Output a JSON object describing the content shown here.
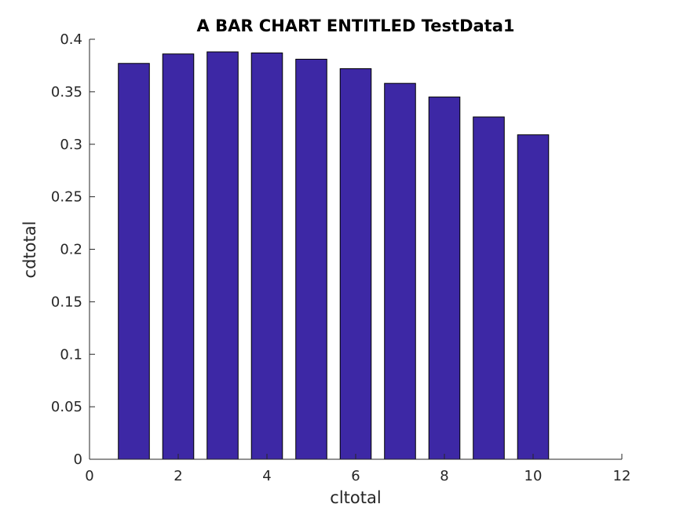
{
  "chart_data": {
    "type": "bar",
    "title": "A BAR CHART ENTITLED TestData1",
    "xlabel": "cltotal",
    "ylabel": "cdtotal",
    "x": [
      1,
      2,
      3,
      4,
      5,
      6,
      7,
      8,
      9,
      10
    ],
    "values": [
      0.377,
      0.386,
      0.388,
      0.387,
      0.381,
      0.372,
      0.358,
      0.345,
      0.326,
      0.309
    ],
    "xlim": [
      0,
      12
    ],
    "ylim": [
      0,
      0.4
    ],
    "xticks": [
      "0",
      "2",
      "4",
      "6",
      "8",
      "10",
      "12"
    ],
    "yticks": [
      "0",
      "0.05",
      "0.1",
      "0.15",
      "0.2",
      "0.25",
      "0.3",
      "0.35",
      "0.4"
    ],
    "grid": false,
    "bar_color": "#3d28a5",
    "edge_color": "#000000"
  }
}
